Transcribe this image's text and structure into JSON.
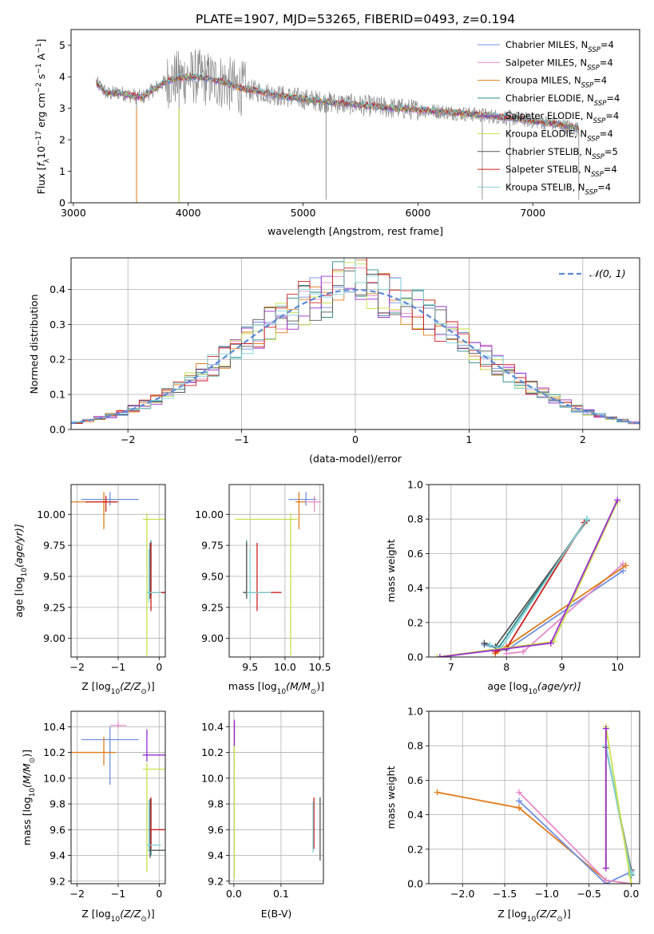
{
  "figure": {
    "title": "PLATE=1907, MJD=53265, FIBERID=0493, z=0.194"
  },
  "series_styles": [
    {
      "name": "Chabrier MILES, N$_{SSP}$=4",
      "label_main": "Chabrier MILES, N",
      "label_sub": "SSP",
      "label_tail": "=4",
      "color": "#6f8fe0"
    },
    {
      "name": "Salpeter MILES, N$_{SSP}$=4",
      "label_main": "Salpeter MILES, N",
      "label_sub": "SSP",
      "label_tail": "=4",
      "color": "#e58ac8"
    },
    {
      "name": "Kroupa MILES, N$_{SSP}$=4",
      "label_main": "Kroupa MILES, N",
      "label_sub": "SSP",
      "label_tail": "=4",
      "color": "#e07b1a"
    },
    {
      "name": "Chabrier ELODIE, N$_{SSP}$=4",
      "label_main": "Chabrier ELODIE, N",
      "label_sub": "SSP",
      "label_tail": "=4",
      "color": "#2a8a8a"
    },
    {
      "name": "Salpeter ELODIE, N$_{SSP}$=4",
      "label_main": "Salpeter ELODIE, N",
      "label_sub": "SSP",
      "label_tail": "=4",
      "color": "#9a2bd0"
    },
    {
      "name": "Kroupa ELODIE, N$_{SSP}$=4",
      "label_main": "Kroupa ELODIE, N",
      "label_sub": "SSP",
      "label_tail": "=4",
      "color": "#c8e04a"
    },
    {
      "name": "Chabrier STELIB, N$_{SSP}$=5",
      "label_main": "Chabrier STELIB, N",
      "label_sub": "SSP",
      "label_tail": "=5",
      "color": "#555555"
    },
    {
      "name": "Salpeter STELIB, N$_{SSP}$=4",
      "label_main": "Salpeter STELIB, N",
      "label_sub": "SSP",
      "label_tail": "=4",
      "color": "#cc1f1f"
    },
    {
      "name": "Kroupa STELIB, N$_{SSP}$=4",
      "label_main": "Kroupa STELIB, N",
      "label_sub": "SSP",
      "label_tail": "=4",
      "color": "#7fd3d8"
    }
  ],
  "chart_data": [
    {
      "id": "spectrum",
      "type": "line",
      "title": "PLATE=1907, MJD=53265, FIBERID=0493, z=0.194",
      "xlabel": "wavelength [Angstrom, rest frame]",
      "ylabel_parts": [
        "Flux [",
        "f",
        "λ",
        "10",
        "−17",
        " erg cm",
        "−2",
        " s",
        "−1",
        " A",
        "−1",
        "]"
      ],
      "xlim": [
        2980,
        7930
      ],
      "ylim": [
        0,
        5.5
      ],
      "xticks": [
        3000,
        4000,
        5000,
        6000,
        7000
      ],
      "yticks": [
        0,
        1,
        2,
        3,
        4,
        5
      ],
      "grid": false,
      "legend": "top-right",
      "data_color": "#888888",
      "continuum": {
        "x": [
          3200,
          3300,
          3400,
          3500,
          3600,
          3700,
          3800,
          3900,
          4000,
          4100,
          4200,
          4300,
          4400,
          4500,
          4600,
          4800,
          5000,
          5200,
          5500,
          5800,
          6000,
          6200,
          6500,
          6800,
          7000,
          7200,
          7400
        ],
        "y": [
          3.8,
          3.45,
          3.5,
          3.4,
          3.35,
          3.6,
          3.85,
          3.95,
          4.0,
          4.0,
          3.9,
          3.85,
          3.7,
          3.6,
          3.55,
          3.4,
          3.3,
          3.2,
          3.1,
          3.0,
          2.95,
          2.9,
          2.8,
          2.7,
          2.6,
          2.5,
          2.35
        ]
      },
      "absorption_dips": [
        {
          "x": 3550,
          "y": 0.0
        },
        {
          "x": 3920,
          "y": 0.0
        },
        {
          "x": 5200,
          "y": 0.1
        },
        {
          "x": 6560,
          "y": 0.1
        },
        {
          "x": 6800,
          "y": 0.4
        },
        {
          "x": 7400,
          "y": 0.1
        }
      ]
    },
    {
      "id": "residuals",
      "type": "histogram",
      "xlabel": "(data-model)/error",
      "ylabel": "Normed distribution",
      "xlim": [
        -2.5,
        2.5
      ],
      "ylim": [
        0,
        0.49
      ],
      "xticks": [
        -2,
        -1,
        0,
        1,
        2
      ],
      "xtick_labels": [
        "−2",
        "−1",
        "0",
        "1",
        "2"
      ],
      "yticks": [
        0.0,
        0.1,
        0.2,
        0.3,
        0.4
      ],
      "ytick_labels": [
        "0.0",
        "0.1",
        "0.2",
        "0.3",
        "0.4"
      ],
      "grid": true,
      "legend": "top-right",
      "bin_width": 0.1,
      "bin_start": -2.5,
      "reference_curve": {
        "name": "N(0,1)",
        "label": "𝒩(0, 1)",
        "mean": 0,
        "sigma": 1,
        "color": "#5b8ad6"
      }
    },
    {
      "id": "age-vs-Z",
      "type": "errorbar",
      "xlabel_parts": [
        "Z [log",
        "10",
        "(Z/Z",
        "⊙",
        ")]"
      ],
      "ylabel_parts": [
        "age  [log",
        "10",
        "(age/yr)]"
      ],
      "xlim": [
        -2.15,
        0.15
      ],
      "ylim": [
        8.85,
        10.24
      ],
      "xticks": [
        -2,
        -1,
        0
      ],
      "xtick_labels": [
        "−2",
        "−1",
        "0"
      ],
      "yticks": [
        9.0,
        9.25,
        9.5,
        9.75,
        10.0
      ],
      "ytick_labels": [
        "9.00",
        "9.25",
        "9.50",
        "9.75",
        "10.00"
      ],
      "grid": true,
      "points": [
        {
          "series": 0,
          "x": -1.2,
          "y": 10.12,
          "xerr": [
            0.7,
            0.7
          ],
          "yerr": [
            0.05,
            0.06
          ]
        },
        {
          "series": 2,
          "x": -1.35,
          "y": 10.1,
          "xerr": [
            0.8,
            0.3
          ],
          "yerr": [
            0.22,
            0.08
          ]
        },
        {
          "series": 7,
          "x": -1.3,
          "y": 10.1,
          "xerr": [
            0.5,
            0.3
          ],
          "yerr": [
            0.08,
            0.05
          ]
        },
        {
          "series": 5,
          "x": -0.3,
          "y": 9.96,
          "xerr": [
            0.1,
            0.6
          ],
          "yerr": [
            1.1,
            0.05
          ]
        },
        {
          "series": 3,
          "x": -0.2,
          "y": 9.37,
          "xerr": [
            0.05,
            0.4
          ],
          "yerr": [
            0.03,
            0.42
          ]
        },
        {
          "series": 6,
          "x": -0.22,
          "y": 9.37,
          "xerr": [
            0.05,
            0.35
          ],
          "yerr": [
            0.05,
            0.4
          ]
        },
        {
          "series": 7,
          "x": -0.2,
          "y": 9.37,
          "xerr": [
            0.05,
            0.35
          ],
          "yerr": [
            0.15,
            0.4
          ]
        },
        {
          "series": 8,
          "x": -0.25,
          "y": 9.37,
          "xerr": [
            0.05,
            0.3
          ],
          "yerr": [
            0.08,
            0.35
          ]
        }
      ]
    },
    {
      "id": "age-vs-mass",
      "type": "errorbar",
      "xlabel_parts": [
        "mass [log",
        "10",
        "(M/M",
        "⊙",
        ")]"
      ],
      "ylabel_parts": [],
      "xlim": [
        9.2,
        10.55
      ],
      "ylim": [
        8.85,
        10.24
      ],
      "xticks": [
        9.5,
        10.0,
        10.5
      ],
      "xtick_labels": [
        "9.5",
        "10.0",
        "10.5"
      ],
      "yticks": [
        9.0,
        9.25,
        9.5,
        9.75,
        10.0
      ],
      "ytick_labels": [
        "9.00",
        "9.25",
        "9.50",
        "9.75",
        "10.00"
      ],
      "grid": true,
      "points": [
        {
          "series": 0,
          "x": 10.3,
          "y": 10.12,
          "xerr": [
            0.25,
            0.15
          ],
          "yerr": [
            0.05,
            0.06
          ]
        },
        {
          "series": 1,
          "x": 10.42,
          "y": 10.1,
          "xerr": [
            0.1,
            0.1
          ],
          "yerr": [
            0.08,
            0.05
          ]
        },
        {
          "series": 2,
          "x": 10.2,
          "y": 10.1,
          "xerr": [
            0.05,
            0.1
          ],
          "yerr": [
            0.22,
            0.08
          ]
        },
        {
          "series": 5,
          "x": 10.08,
          "y": 9.96,
          "xerr": [
            0.8,
            0.1
          ],
          "yerr": [
            1.1,
            0.05
          ]
        },
        {
          "series": 3,
          "x": 9.45,
          "y": 9.37,
          "xerr": [
            0.05,
            0.3
          ],
          "yerr": [
            0.03,
            0.42
          ]
        },
        {
          "series": 6,
          "x": 9.45,
          "y": 9.37,
          "xerr": [
            0.05,
            0.3
          ],
          "yerr": [
            0.05,
            0.4
          ]
        },
        {
          "series": 7,
          "x": 9.6,
          "y": 9.37,
          "xerr": [
            0.15,
            0.35
          ],
          "yerr": [
            0.15,
            0.4
          ]
        },
        {
          "series": 8,
          "x": 9.5,
          "y": 9.37,
          "xerr": [
            0.05,
            0.3
          ],
          "yerr": [
            0.08,
            0.35
          ]
        }
      ]
    },
    {
      "id": "weight-vs-age",
      "type": "line",
      "xlabel_parts": [
        "age  [log",
        "10",
        "(age/yr)]"
      ],
      "ylabel": "mass weight",
      "xlim": [
        6.6,
        10.4
      ],
      "ylim": [
        0,
        1.0
      ],
      "xticks": [
        7,
        8,
        9,
        10
      ],
      "xtick_labels": [
        "7",
        "8",
        "9",
        "10"
      ],
      "yticks": [
        0.0,
        0.2,
        0.4,
        0.6,
        0.8,
        1.0
      ],
      "ytick_labels": [
        "0.0",
        "0.2",
        "0.4",
        "0.6",
        "0.8",
        "1.0"
      ],
      "grid": true,
      "series": [
        {
          "series": 0,
          "x": [
            7.6,
            8.0,
            10.1
          ],
          "y": [
            0.07,
            0.04,
            0.5
          ]
        },
        {
          "series": 1,
          "x": [
            8.0,
            8.3,
            10.1
          ],
          "y": [
            0.02,
            0.03,
            0.54
          ]
        },
        {
          "series": 2,
          "x": [
            7.8,
            8.0,
            10.15
          ],
          "y": [
            0.02,
            0.06,
            0.53
          ]
        },
        {
          "series": 3,
          "x": [
            7.6,
            7.85,
            9.45
          ],
          "y": [
            0.08,
            0.05,
            0.8
          ]
        },
        {
          "series": 6,
          "x": [
            7.6,
            7.8,
            9.45
          ],
          "y": [
            0.08,
            0.06,
            0.79
          ]
        },
        {
          "series": 7,
          "x": [
            7.8,
            8.0,
            9.4
          ],
          "y": [
            0.03,
            0.05,
            0.78
          ]
        },
        {
          "series": 8,
          "x": [
            7.7,
            7.9,
            9.45
          ],
          "y": [
            0.07,
            0.05,
            0.8
          ]
        },
        {
          "series": 5,
          "x": [
            6.75,
            8.85,
            10.0
          ],
          "y": [
            0.0,
            0.09,
            0.9
          ]
        },
        {
          "series": 4,
          "x": [
            6.8,
            8.8,
            10.0
          ],
          "y": [
            0.0,
            0.08,
            0.91
          ]
        }
      ]
    },
    {
      "id": "mass-vs-Z",
      "type": "errorbar",
      "xlabel_parts": [
        "Z [log",
        "10",
        "(Z/Z",
        "⊙",
        ")]"
      ],
      "ylabel_parts": [
        "mass [log",
        "10",
        "(M/M",
        "⊙",
        ")]"
      ],
      "xlim": [
        -2.15,
        0.15
      ],
      "ylim": [
        9.18,
        10.52
      ],
      "xticks": [
        -2,
        -1,
        0
      ],
      "xtick_labels": [
        "−2",
        "−1",
        "0"
      ],
      "yticks": [
        9.2,
        9.4,
        9.6,
        9.8,
        10.0,
        10.2,
        10.4
      ],
      "ytick_labels": [
        "9.2",
        "9.4",
        "9.6",
        "9.8",
        "10.0",
        "10.2",
        "10.4"
      ],
      "grid": true,
      "points": [
        {
          "series": 0,
          "x": -1.2,
          "y": 10.3,
          "xerr": [
            0.7,
            0.7
          ],
          "yerr": [
            0.35,
            0.1
          ]
        },
        {
          "series": 1,
          "x": -1.0,
          "y": 10.41,
          "xerr": [
            0.2,
            0.2
          ],
          "yerr": [
            0.02,
            0.03
          ]
        },
        {
          "series": 2,
          "x": -1.35,
          "y": 10.2,
          "xerr": [
            0.8,
            0.3
          ],
          "yerr": [
            0.1,
            0.12
          ]
        },
        {
          "series": 4,
          "x": -0.3,
          "y": 10.18,
          "xerr": [
            0.1,
            0.5
          ],
          "yerr": [
            0.05,
            0.2
          ]
        },
        {
          "series": 5,
          "x": -0.3,
          "y": 10.07,
          "xerr": [
            0.1,
            0.6
          ],
          "yerr": [
            0.8,
            0.05
          ]
        },
        {
          "series": 3,
          "x": -0.2,
          "y": 9.44,
          "xerr": [
            0.05,
            0.4
          ],
          "yerr": [
            0.04,
            0.4
          ]
        },
        {
          "series": 6,
          "x": -0.22,
          "y": 9.44,
          "xerr": [
            0.05,
            0.35
          ],
          "yerr": [
            0.06,
            0.4
          ]
        },
        {
          "series": 7,
          "x": -0.2,
          "y": 9.6,
          "xerr": [
            0.05,
            0.35
          ],
          "yerr": [
            0.15,
            0.25
          ]
        },
        {
          "series": 8,
          "x": -0.25,
          "y": 9.48,
          "xerr": [
            0.05,
            0.3
          ],
          "yerr": [
            0.05,
            0.35
          ]
        }
      ]
    },
    {
      "id": "mass-vs-EBV",
      "type": "errorbar",
      "xlabel": "E(B-V)",
      "xlim": [
        -0.01,
        0.19
      ],
      "ylim": [
        9.18,
        10.52
      ],
      "xticks": [
        0.0,
        0.1
      ],
      "xtick_labels": [
        "0.0",
        "0.1"
      ],
      "yticks": [
        9.2,
        9.4,
        9.6,
        9.8,
        10.0,
        10.2,
        10.4
      ],
      "ytick_labels": [
        "9.2",
        "9.4",
        "9.6",
        "9.8",
        "10.0",
        "10.2",
        "10.4"
      ],
      "grid": true,
      "points": [
        {
          "series": 1,
          "x": 0.001,
          "y": 10.41,
          "xerr": [
            0.001,
            0.001
          ],
          "yerr": [
            0.1,
            0.05
          ]
        },
        {
          "series": 5,
          "x": 0.001,
          "y": 10.07,
          "xerr": [
            0.001,
            0.001
          ],
          "yerr": [
            0.85,
            0.3
          ]
        },
        {
          "series": 4,
          "x": 0.001,
          "y": 10.35,
          "xerr": [
            0.001,
            0.001
          ],
          "yerr": [
            0.1,
            0.1
          ]
        },
        {
          "series": 7,
          "x": 0.17,
          "y": 9.6,
          "xerr": [
            0.001,
            0.001
          ],
          "yerr": [
            0.15,
            0.25
          ]
        },
        {
          "series": 8,
          "x": 0.168,
          "y": 9.48,
          "xerr": [
            0.001,
            0.001
          ],
          "yerr": [
            0.06,
            0.34
          ]
        },
        {
          "series": 6,
          "x": 0.183,
          "y": 9.6,
          "xerr": [
            0.001,
            0.001
          ],
          "yerr": [
            0.24,
            0.25
          ]
        }
      ]
    },
    {
      "id": "weight-vs-Z",
      "type": "line",
      "xlabel_parts": [
        "Z [log",
        "10",
        "(Z/Z",
        "⊙",
        ")]"
      ],
      "ylabel": "mass weight",
      "xlim": [
        -2.4,
        0.1
      ],
      "ylim": [
        0,
        1.0
      ],
      "xticks": [
        -2.0,
        -1.5,
        -1.0,
        -0.5,
        0.0
      ],
      "xtick_labels": [
        "−2.0",
        "−1.5",
        "−1.0",
        "−0.5",
        "0.0"
      ],
      "yticks": [
        0.0,
        0.2,
        0.4,
        0.6,
        0.8,
        1.0
      ],
      "ytick_labels": [
        "0.0",
        "0.2",
        "0.4",
        "0.6",
        "0.8",
        "1.0"
      ],
      "grid": true,
      "series": [
        {
          "series": 2,
          "x": [
            -2.3,
            -1.33,
            -0.3,
            0.0
          ],
          "y": [
            0.53,
            0.44,
            0.02,
            0.0
          ]
        },
        {
          "series": 0,
          "x": [
            -1.33,
            -0.3,
            0.0
          ],
          "y": [
            0.48,
            0.0,
            0.07
          ]
        },
        {
          "series": 1,
          "x": [
            -1.33,
            -0.3,
            0.0
          ],
          "y": [
            0.53,
            0.02,
            0.0
          ]
        },
        {
          "series": 3,
          "x": [
            -0.3,
            0.0
          ],
          "y": [
            0.8,
            0.05
          ]
        },
        {
          "series": 6,
          "x": [
            -0.3,
            0.0
          ],
          "y": [
            0.79,
            0.08
          ]
        },
        {
          "series": 8,
          "x": [
            -0.3,
            0.0
          ],
          "y": [
            0.8,
            0.06
          ]
        },
        {
          "series": 5,
          "x": [
            -0.3,
            -0.3,
            0.0
          ],
          "y": [
            0.09,
            0.91,
            0.0
          ]
        },
        {
          "series": 4,
          "x": [
            -0.3,
            -0.3
          ],
          "y": [
            0.09,
            0.9
          ]
        }
      ]
    }
  ]
}
